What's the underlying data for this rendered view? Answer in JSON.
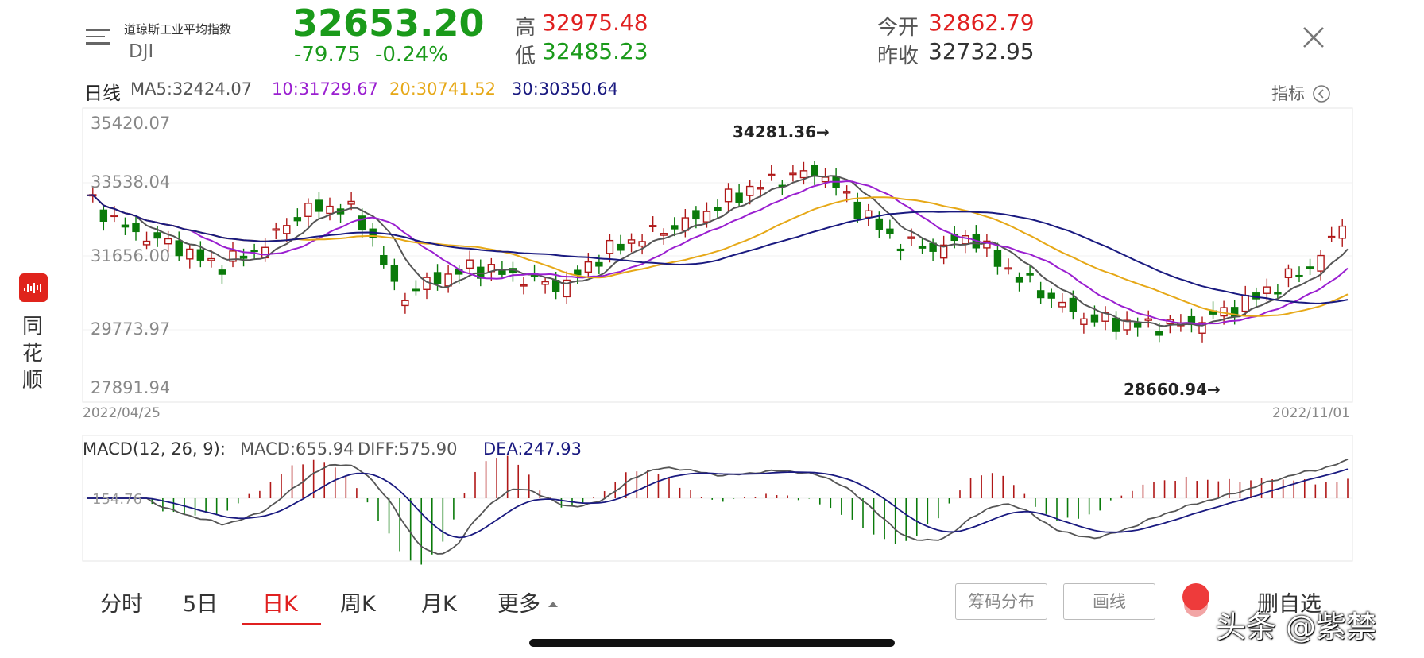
{
  "header": {
    "name_cn": "道琼斯工业平均指数",
    "code": "DJI",
    "price": "32653.20",
    "change": "-79.75",
    "change_pct": "-0.24%",
    "high_label": "高",
    "high": "32975.48",
    "low_label": "低",
    "low": "32485.23",
    "open_label": "今开",
    "open": "32862.79",
    "prev_label": "昨收",
    "prev_close": "32732.95"
  },
  "ma_bar": {
    "period": "日线",
    "ma5": "MA5:32424.07",
    "ma10": "10:31729.67",
    "ma20": "20:30741.52",
    "ma30": "30:30350.64",
    "indicator_label": "指标"
  },
  "side_brand": {
    "c1": "同",
    "c2": "花",
    "c3": "顺"
  },
  "kline": {
    "y_labels": [
      "35420.07",
      "33538.04",
      "31656.00",
      "29773.97",
      "27891.94"
    ],
    "start_date": "2022/04/25",
    "end_date": "2022/11/01",
    "high_annotation": "34281.36→",
    "low_annotation": "28660.94→"
  },
  "macd": {
    "title": "MACD(12, 26, 9):",
    "macd": "MACD:655.94",
    "diff": "DIFF:575.90",
    "dea": "DEA:247.93",
    "axis_label": "154.76"
  },
  "tabs": [
    {
      "label": "分时"
    },
    {
      "label": "5日"
    },
    {
      "label": "日K"
    },
    {
      "label": "周K"
    },
    {
      "label": "月K"
    },
    {
      "label": "更多"
    }
  ],
  "buttons": {
    "chips": "筹码分布",
    "draw": "画线",
    "remove": "删自选"
  },
  "watermark": "头条 @紫禁",
  "colors": {
    "up": "#b01818",
    "down": "#0a7a0a",
    "ma5": "#555555",
    "ma10": "#9a1fd0",
    "ma20": "#e6a817",
    "ma30": "#1a1a80"
  }
}
